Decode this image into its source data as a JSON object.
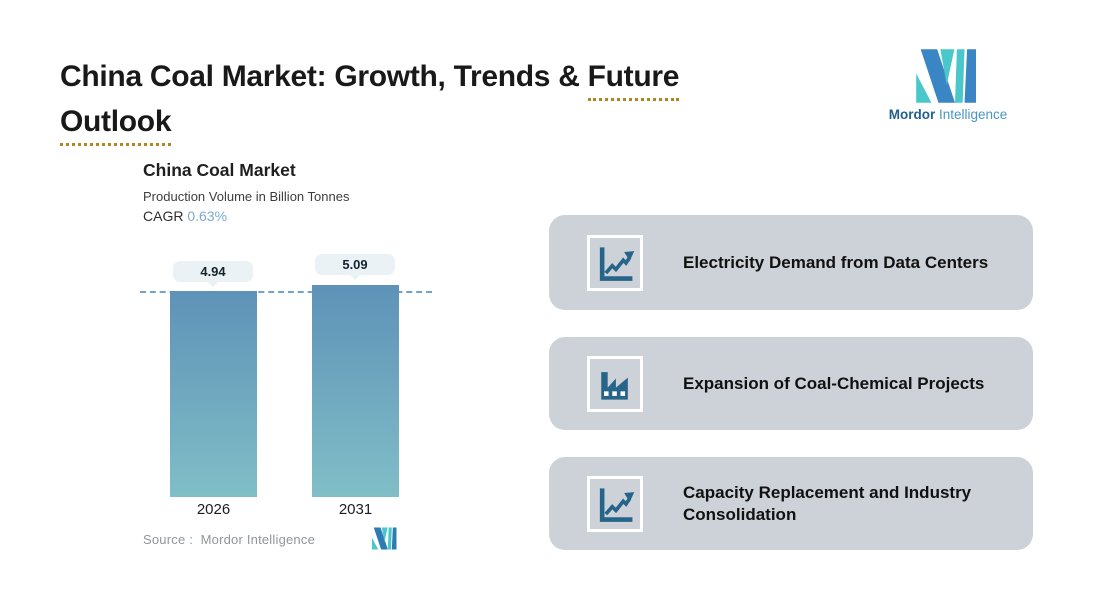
{
  "header": {
    "title_part1": "China Coal Market: Growth, Trends & ",
    "title_part2": "Future",
    "title_line2": "Outlook"
  },
  "brand": {
    "wordmark_bold": "Mordor",
    "wordmark_light": "Intelligence"
  },
  "chart": {
    "title": "China Coal Market",
    "subtitle": "Production Volume in Billion Tonnes",
    "cagr_label": "CAGR",
    "cagr_value": "0.63%",
    "bars": [
      {
        "year": "2026",
        "label": "4.94"
      },
      {
        "year": "2031",
        "label": "5.09"
      }
    ],
    "source": "Source :  Mordor Intelligence"
  },
  "chart_data": {
    "type": "bar",
    "title": "China Coal Market",
    "subtitle": "Production Volume in Billion Tonnes",
    "cagr": "0.63%",
    "categories": [
      "2026",
      "2031"
    ],
    "values": [
      4.94,
      5.09
    ],
    "data_labels": [
      "4.94",
      "5.09"
    ],
    "ylabel": "Production Volume in Billion Tonnes",
    "ylim": [
      0,
      5.09
    ],
    "reference_line_y": 4.94,
    "grid": false,
    "legend": false,
    "bar_gradient_top": "#5e92b7",
    "bar_gradient_bottom": "#80bec7"
  },
  "drivers": [
    {
      "icon": "line-chart-up-icon",
      "label": "Electricity Demand from Data Centers"
    },
    {
      "icon": "factory-icon",
      "label": "Expansion of Coal-Chemical Projects"
    },
    {
      "icon": "line-chart-up-icon",
      "label": "Capacity Replacement and Industry Consolidation"
    }
  ],
  "colors": {
    "accent_teal": "#4ac7cb",
    "accent_blue": "#3a86c4",
    "card_bg": "#cdd2d8",
    "icon_ink": "#26648a",
    "dashed_line": "#6fa3d4",
    "underline_gold": "#b0861e",
    "cagr_value": "#7aa9d0"
  }
}
